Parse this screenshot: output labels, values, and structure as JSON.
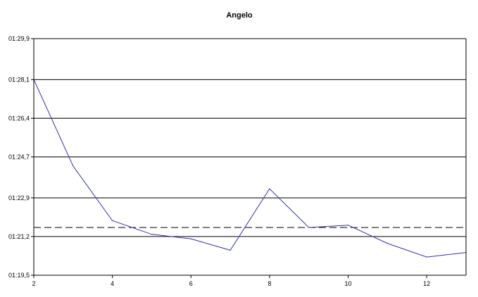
{
  "chart_data": {
    "type": "line",
    "title": "Angelo",
    "xlabel": "",
    "ylabel": "",
    "x": [
      2,
      3,
      4,
      5,
      6,
      7,
      8,
      9,
      10,
      11,
      12,
      13
    ],
    "series": [
      {
        "color": "#3333aa",
        "values": [
          88.1,
          84.3,
          81.9,
          81.3,
          81.1,
          80.6,
          83.3,
          81.6,
          81.7,
          80.9,
          80.3,
          80.5
        ]
      }
    ],
    "reference_line": {
      "value": 81.6,
      "style": "dashed",
      "color": "#000000"
    },
    "xlim": [
      2,
      13
    ],
    "ylim": [
      79.5,
      89.9
    ],
    "x_ticks": [
      2,
      4,
      6,
      8,
      10,
      12
    ],
    "x_tick_labels": [
      "2",
      "4",
      "6",
      "8",
      "10",
      "12"
    ],
    "y_ticks": [
      79.5,
      81.2,
      82.9,
      84.7,
      86.4,
      88.1,
      89.9
    ],
    "y_tick_labels": [
      "01:19,5",
      "01:21,2",
      "01:22,9",
      "01:24,7",
      "01:26,4",
      "01:28,1",
      "01:29,9"
    ],
    "grid": "horizontal",
    "legend": "none"
  }
}
